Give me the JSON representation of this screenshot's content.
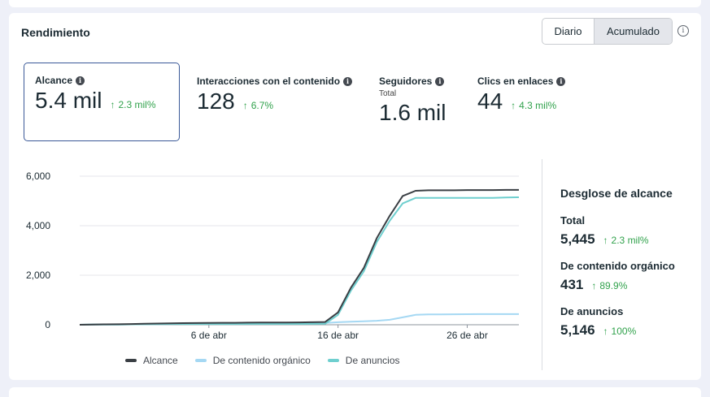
{
  "section": {
    "title": "Rendimiento",
    "toggle": {
      "option1": "Diario",
      "option2": "Acumulado",
      "selected": "Acumulado"
    },
    "info_icon": "info-icon"
  },
  "metrics": [
    {
      "label": "Alcance",
      "value": "5.4 mil",
      "delta": "2.3 mil%",
      "selected": true
    },
    {
      "label": "Interacciones con el contenido",
      "value": "128",
      "delta": "6.7%"
    },
    {
      "label": "Seguidores",
      "sublabel": "Total",
      "value": "1.6 mil"
    },
    {
      "label": "Clics en enlaces",
      "value": "44",
      "delta": "4.3 mil%"
    }
  ],
  "colors": {
    "alcance": "#3a3f44",
    "organico": "#a5d8f3",
    "anuncios": "#6fcfcf",
    "positive": "#31a24c",
    "selected_border": "#3b5998"
  },
  "chart_data": {
    "type": "line",
    "x": [
      "27 mar",
      "28 mar",
      "29 mar",
      "30 mar",
      "31 mar",
      "1 abr",
      "2 abr",
      "3 abr",
      "4 abr",
      "5 abr",
      "6 abr",
      "7 abr",
      "8 abr",
      "9 abr",
      "10 abr",
      "11 abr",
      "12 abr",
      "13 abr",
      "14 abr",
      "15 abr",
      "16 abr",
      "17 abr",
      "18 abr",
      "19 abr",
      "20 abr",
      "21 abr",
      "22 abr",
      "23 abr",
      "24 abr",
      "25 abr",
      "26 abr",
      "27 abr",
      "28 abr",
      "29 abr",
      "30 abr"
    ],
    "xticks": [
      "6 de abr",
      "16 de abr",
      "26 de abr"
    ],
    "yticks": [
      "0",
      "2,000",
      "4,000",
      "6,000"
    ],
    "ylim": [
      0,
      6000
    ],
    "series": [
      {
        "name": "Alcance",
        "values": [
          0,
          10,
          15,
          20,
          30,
          40,
          50,
          60,
          65,
          70,
          75,
          78,
          80,
          85,
          88,
          90,
          92,
          95,
          100,
          110,
          500,
          1500,
          2300,
          3500,
          4400,
          5200,
          5410,
          5430,
          5430,
          5430,
          5440,
          5440,
          5440,
          5445,
          5445
        ]
      },
      {
        "name": "De contenido orgánico",
        "values": [
          0,
          5,
          8,
          10,
          15,
          20,
          25,
          30,
          35,
          40,
          45,
          48,
          50,
          52,
          55,
          58,
          60,
          62,
          65,
          70,
          100,
          120,
          140,
          160,
          200,
          300,
          400,
          415,
          420,
          422,
          425,
          428,
          430,
          430,
          431
        ]
      },
      {
        "name": "De anuncios",
        "values": [
          0,
          5,
          7,
          10,
          15,
          20,
          25,
          30,
          30,
          30,
          30,
          30,
          30,
          33,
          33,
          32,
          32,
          33,
          35,
          40,
          400,
          1380,
          2160,
          3340,
          4200,
          4900,
          5120,
          5120,
          5120,
          5120,
          5120,
          5120,
          5120,
          5140,
          5146
        ]
      }
    ],
    "grid": true,
    "legend_placement": "bottom"
  },
  "breakdown": {
    "title": "Desglose de alcance",
    "items": [
      {
        "label": "Total",
        "value": "5,445",
        "delta": "2.3 mil%"
      },
      {
        "label": "De contenido orgánico",
        "value": "431",
        "delta": "89.9%"
      },
      {
        "label": "De anuncios",
        "value": "5,146",
        "delta": "100%"
      }
    ]
  }
}
